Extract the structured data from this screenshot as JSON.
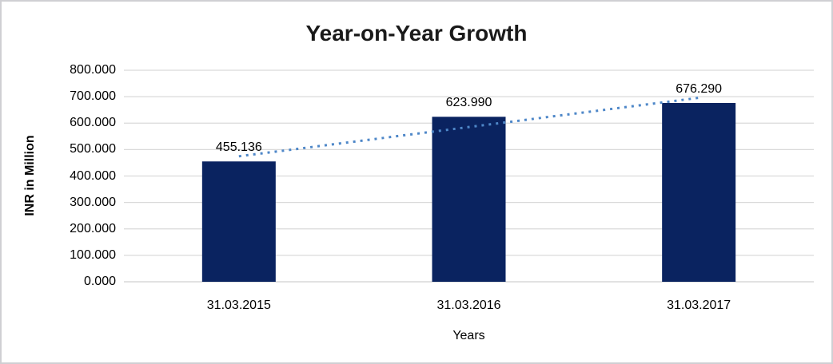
{
  "chart_data": {
    "type": "bar",
    "title": "Year-on-Year Growth",
    "xlabel": "Years",
    "ylabel": "INR in Million",
    "categories": [
      "31.03.2015",
      "31.03.2016",
      "31.03.2017"
    ],
    "values": [
      455.136,
      623.99,
      676.29
    ],
    "data_labels": [
      "455.136",
      "623.990",
      "676.290"
    ],
    "ylim": [
      0,
      800
    ],
    "ytick_step": 100,
    "ytick_labels": [
      "0.000",
      "100.000",
      "200.000",
      "300.000",
      "400.000",
      "500.000",
      "600.000",
      "700.000",
      "800.000"
    ],
    "grid": true,
    "legend": false,
    "trendline": {
      "type": "linear",
      "style": "dotted"
    },
    "colors": {
      "bar": "#0a2360",
      "trendline": "#4e87c8",
      "gridline": "#dadada",
      "baseline": "#d0d0d0",
      "frame_border": "#cfcfd3",
      "text": "#000000",
      "title_text": "#1a1a1a"
    }
  }
}
